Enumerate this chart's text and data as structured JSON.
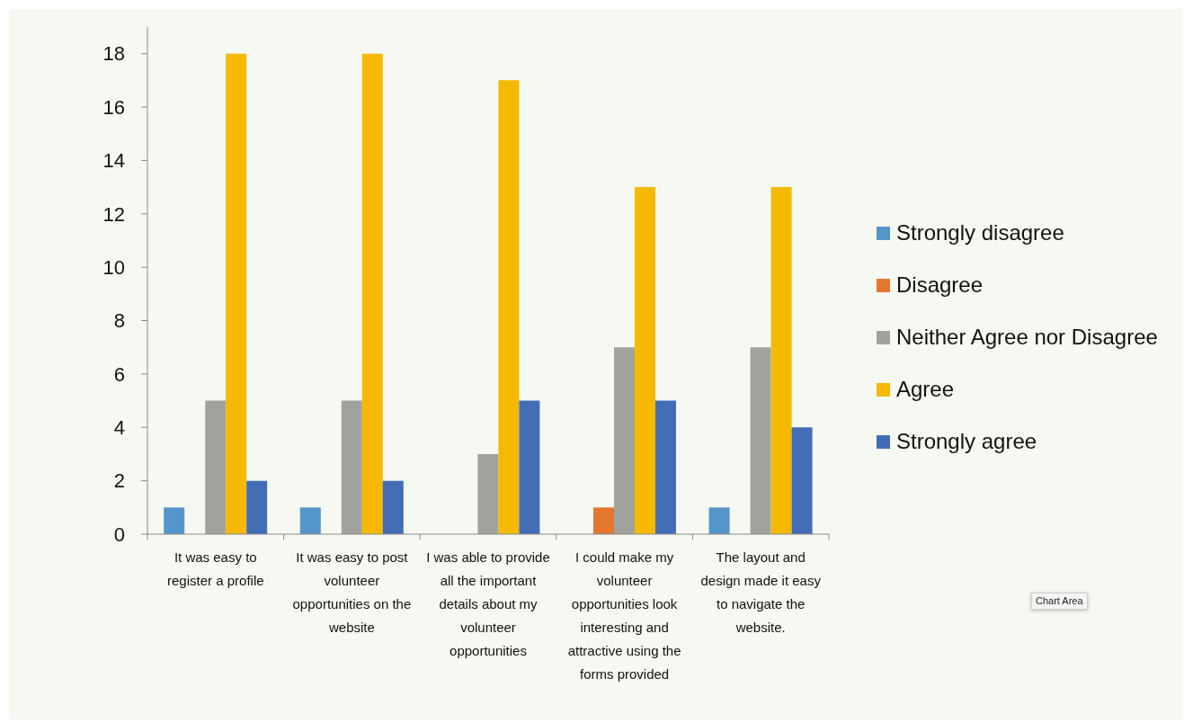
{
  "chart_data": {
    "type": "bar",
    "categories": [
      "It was easy to register a profile",
      "It was easy to post volunteer opportunities on the website",
      "I was able to provide all the important details about my volunteer opportunities",
      "I could make my volunteer opportunities look interesting and attractive using the forms provided",
      "The layout and design made it easy to navigate the website."
    ],
    "series": [
      {
        "name": "Strongly disagree",
        "color": "#5596ca",
        "values": [
          1,
          1,
          0,
          0,
          1
        ]
      },
      {
        "name": "Disagree",
        "color": "#e4772f",
        "values": [
          0,
          0,
          0,
          1,
          0
        ]
      },
      {
        "name": "Neither Agree nor Disagree",
        "color": "#a0a29d",
        "values": [
          5,
          5,
          3,
          7,
          7
        ]
      },
      {
        "name": "Agree",
        "color": "#f4b900",
        "values": [
          18,
          18,
          17,
          13,
          13
        ]
      },
      {
        "name": "Strongly agree",
        "color": "#436eb6",
        "values": [
          2,
          2,
          5,
          5,
          4
        ]
      }
    ],
    "ylim": [
      0,
      19
    ],
    "yticks": [
      0,
      2,
      4,
      6,
      8,
      10,
      12,
      14,
      16,
      18
    ],
    "grid": false,
    "legend": "right",
    "annotations": [
      "Chart Area"
    ]
  }
}
